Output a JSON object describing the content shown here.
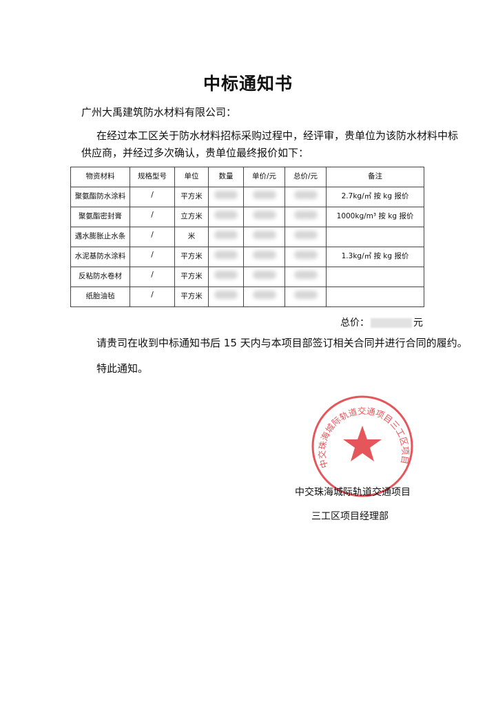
{
  "title": "中标通知书",
  "addressee": "广州大禹建筑防水材料有限公司：",
  "paragraph1_line1": "在经过本工区关于防水材料招标采购过程中，经评审，贵单位为该防水材料中标",
  "paragraph1_line2": "供应商，并经过多次确认，贵单位最终报价如下：",
  "table": {
    "headers": [
      "物资材料",
      "规格型号",
      "单位",
      "数量",
      "单价/元",
      "总价/元",
      "备注"
    ],
    "rows": [
      {
        "material": "聚氨酯防水涂料",
        "spec": "/",
        "unit": "平方米",
        "note": "2.7kg/㎡  按 kg 报价"
      },
      {
        "material": "聚氨酯密封膏",
        "spec": "/",
        "unit": "立方米",
        "note": "1000kg/m³ 按 kg 报价"
      },
      {
        "material": "遇水膨胀止水条",
        "spec": "/",
        "unit": "米",
        "note": ""
      },
      {
        "material": "水泥基防水涂料",
        "spec": "/",
        "unit": "平方米",
        "note": "1.3kg/㎡  按 kg 报价"
      },
      {
        "material": "反粘防水卷材",
        "spec": "/",
        "unit": "平方米",
        "note": ""
      },
      {
        "material": "纸胎油毡",
        "spec": "/",
        "unit": "平方米",
        "note": ""
      }
    ]
  },
  "total": {
    "label": "总价：",
    "currency": "元"
  },
  "paragraph2": "请贵司在收到中标通知书后 15 天内与本项目部签订相关合同并进行合同的履约。",
  "paragraph3": "特此通知。",
  "seal": {
    "text": "中交珠海城际轨道交通项目三工区项目经理部",
    "color": "#e0383e"
  },
  "signature": {
    "line1": "中交珠海城际轨道交通项目",
    "line2": "三工区项目经理部"
  }
}
